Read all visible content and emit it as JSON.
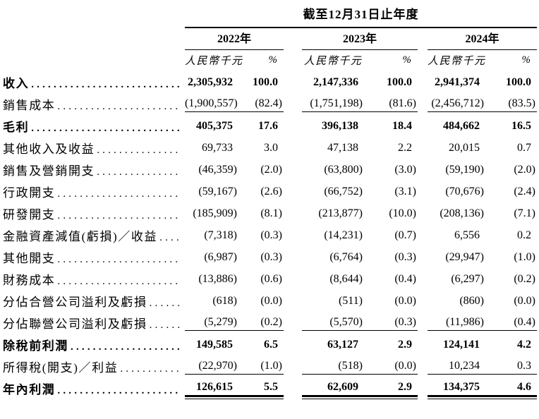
{
  "table": {
    "period_header": "截至12月31日止年度",
    "year_groups": [
      {
        "year": "2022年",
        "unit": "人民幣千元",
        "pct": "%"
      },
      {
        "year": "2023年",
        "unit": "人民幣千元",
        "pct": "%"
      },
      {
        "year": "2024年",
        "unit": "人民幣千元",
        "pct": "%"
      }
    ],
    "rows": [
      {
        "label": "收入",
        "values": [
          "2,305,932",
          "100.0",
          "2,147,336",
          "100.0",
          "2,941,374",
          "100.0"
        ]
      },
      {
        "label": "銷售成本",
        "values": [
          "(1,900,557)",
          "(82.4)",
          "(1,751,198)",
          "(81.6)",
          "(2,456,712)",
          "(83.5)"
        ]
      },
      {
        "label": "毛利",
        "values": [
          "405,375",
          "17.6",
          "396,138",
          "18.4",
          "484,662",
          "16.5"
        ]
      },
      {
        "label": "其他收入及收益",
        "values": [
          "69,733",
          "3.0",
          "47,138",
          "2.2",
          "20,015",
          "0.7"
        ]
      },
      {
        "label": "銷售及營銷開支",
        "values": [
          "(46,359)",
          "(2.0)",
          "(63,800)",
          "(3.0)",
          "(59,190)",
          "(2.0)"
        ]
      },
      {
        "label": "行政開支",
        "values": [
          "(59,167)",
          "(2.6)",
          "(66,752)",
          "(3.1)",
          "(70,676)",
          "(2.4)"
        ]
      },
      {
        "label": "研發開支",
        "values": [
          "(185,909)",
          "(8.1)",
          "(213,877)",
          "(10.0)",
          "(208,136)",
          "(7.1)"
        ]
      },
      {
        "label": "金融資產減值(虧損)／收益",
        "values": [
          "(7,318)",
          "(0.3)",
          "(14,231)",
          "(0.7)",
          "6,556",
          "0.2"
        ]
      },
      {
        "label": "其他開支",
        "values": [
          "(6,987)",
          "(0.3)",
          "(6,764)",
          "(0.3)",
          "(29,947)",
          "(1.0)"
        ]
      },
      {
        "label": "財務成本",
        "values": [
          "(13,886)",
          "(0.6)",
          "(8,644)",
          "(0.4)",
          "(6,297)",
          "(0.2)"
        ]
      },
      {
        "label": "分佔合營公司溢利及虧損",
        "values": [
          "(618)",
          "(0.0)",
          "(511)",
          "(0.0)",
          "(860)",
          "(0.0)"
        ]
      },
      {
        "label": "分佔聯營公司溢利及虧損",
        "values": [
          "(5,279)",
          "(0.2)",
          "(5,570)",
          "(0.3)",
          "(11,986)",
          "(0.4)"
        ]
      },
      {
        "label": "除稅前利潤",
        "values": [
          "149,585",
          "6.5",
          "63,127",
          "2.9",
          "124,141",
          "4.2"
        ]
      },
      {
        "label": "所得稅(開支)／利益",
        "values": [
          "(22,970)",
          "(1.0)",
          "(518)",
          "(0.0)",
          "10,234",
          "0.3"
        ]
      },
      {
        "label": "年內利潤",
        "values": [
          "126,615",
          "5.5",
          "62,609",
          "2.9",
          "134,375",
          "4.6"
        ]
      }
    ]
  }
}
